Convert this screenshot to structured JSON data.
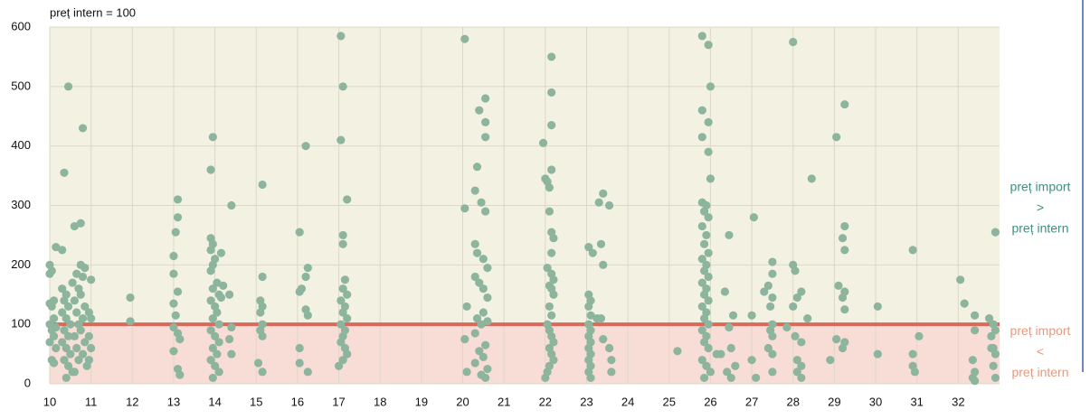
{
  "chart_data": {
    "type": "scatter",
    "reference_line": {
      "value": 100,
      "label": "preț intern = 100",
      "color": "#d9695a"
    },
    "annotations": [
      {
        "lines": [
          "preț import",
          ">",
          "preț intern"
        ],
        "color": "#3f8f80"
      },
      {
        "lines": [
          "preț import",
          "<",
          "preț intern"
        ],
        "color": "#e59a80"
      }
    ],
    "region_colors": {
      "above": "#f3f1e2",
      "below": "#f7ddd5"
    },
    "color": "#8db59e",
    "xlim": [
      10,
      33
    ],
    "ylim": [
      0,
      600
    ],
    "xticks": [
      10,
      11,
      12,
      13,
      14,
      15,
      16,
      17,
      18,
      19,
      20,
      21,
      22,
      23,
      24,
      25,
      26,
      27,
      28,
      29,
      30,
      31,
      32
    ],
    "yticks": [
      0,
      100,
      200,
      300,
      400,
      500,
      600
    ],
    "grid": true,
    "x": [
      10.0,
      10.05,
      10.0,
      10.1,
      10.0,
      10.05,
      10.1,
      10.0,
      10.15,
      10.05,
      10.1,
      10.0,
      10.15,
      10.05,
      10.1,
      10.15,
      10.3,
      10.35,
      10.45,
      10.3,
      10.4,
      10.35,
      10.45,
      10.3,
      10.4,
      10.5,
      10.35,
      10.45,
      10.3,
      10.4,
      10.5,
      10.35,
      10.45,
      10.55,
      10.4,
      10.6,
      10.65,
      10.55,
      10.7,
      10.6,
      10.65,
      10.7,
      10.6,
      10.65,
      10.7,
      10.6,
      10.75,
      10.8,
      10.75,
      10.85,
      10.8,
      10.75,
      10.85,
      10.8,
      10.75,
      10.85,
      10.8,
      10.9,
      11.0,
      10.95,
      11.0,
      10.95,
      11.0,
      10.95,
      11.95,
      11.95,
      13.1,
      13.1,
      13.05,
      13.0,
      13.0,
      13.1,
      13.0,
      13.05,
      13.0,
      13.1,
      13.0,
      13.1,
      13.15,
      13.15,
      13.95,
      13.9,
      13.9,
      13.95,
      13.9,
      14.0,
      13.95,
      13.9,
      14.05,
      13.95,
      14.1,
      13.9,
      14.0,
      14.05,
      13.95,
      14.1,
      13.9,
      14.0,
      14.1,
      13.95,
      14.05,
      13.9,
      14.0,
      14.1,
      13.95,
      14.15,
      14.2,
      14.15,
      14.4,
      14.35,
      14.4,
      14.35,
      14.4,
      15.15,
      15.15,
      15.1,
      15.15,
      15.1,
      15.15,
      15.1,
      15.15,
      15.05,
      15.15,
      16.05,
      16.25,
      16.2,
      16.1,
      16.05,
      16.2,
      16.25,
      16.05,
      16.05,
      16.25,
      16.2,
      17.05,
      17.1,
      17.05,
      17.2,
      17.1,
      17.1,
      17.15,
      17.1,
      17.2,
      17.05,
      17.15,
      17.1,
      17.2,
      17.05,
      17.15,
      17.1,
      17.05,
      17.15,
      17.2,
      17.1,
      17.0,
      20.05,
      20.4,
      20.55,
      20.55,
      20.55,
      20.35,
      20.3,
      20.45,
      20.05,
      20.55,
      20.3,
      20.35,
      20.5,
      20.6,
      20.3,
      20.4,
      20.5,
      20.6,
      20.1,
      20.5,
      20.35,
      20.6,
      20.45,
      20.3,
      20.05,
      20.55,
      20.4,
      20.5,
      20.3,
      20.6,
      20.1,
      20.45,
      20.55,
      22.15,
      22.15,
      22.15,
      21.95,
      22.15,
      22.0,
      22.05,
      22.1,
      22.1,
      22.15,
      22.2,
      22.15,
      22.05,
      22.15,
      22.2,
      22.1,
      22.15,
      22.2,
      22.1,
      22.15,
      22.05,
      22.1,
      22.15,
      22.2,
      22.1,
      22.15,
      22.2,
      22.1,
      22.05,
      22.0,
      23.05,
      23.15,
      23.35,
      23.05,
      23.1,
      23.05,
      23.1,
      23.25,
      23.05,
      23.1,
      23.05,
      23.1,
      23.05,
      23.1,
      23.05,
      23.1,
      23.05,
      23.1,
      23.3,
      23.4,
      23.55,
      23.4,
      23.35,
      23.4,
      23.55,
      23.6,
      23.6,
      25.2,
      25.8,
      25.95,
      26.0,
      25.8,
      25.95,
      25.8,
      25.95,
      26.0,
      25.8,
      25.9,
      25.85,
      25.95,
      25.8,
      25.9,
      25.85,
      25.95,
      25.8,
      25.9,
      25.85,
      25.95,
      25.8,
      25.9,
      25.85,
      25.95,
      25.8,
      25.9,
      25.85,
      25.95,
      25.8,
      25.9,
      25.85,
      25.95,
      26.15,
      25.8,
      25.9,
      26.0,
      25.85,
      26.45,
      26.35,
      26.55,
      26.45,
      26.5,
      26.25,
      26.6,
      26.4,
      26.5,
      27.05,
      27.5,
      27.5,
      27.4,
      27.3,
      27.5,
      27.45,
      27.0,
      27.5,
      27.45,
      27.5,
      27.4,
      27.5,
      27.0,
      27.5,
      27.1,
      28.0,
      28.45,
      28.0,
      28.05,
      28.2,
      28.1,
      28.0,
      28.35,
      27.85,
      28.05,
      28.2,
      28.1,
      28.2,
      28.1,
      28.2,
      29.25,
      29.05,
      29.25,
      29.2,
      29.25,
      29.1,
      29.25,
      29.2,
      29.25,
      29.05,
      29.25,
      29.2,
      28.9,
      30.05,
      30.05,
      30.9,
      31.05,
      30.9,
      30.9,
      30.95,
      32.05,
      32.15,
      32.4,
      32.4,
      32.8,
      32.35,
      32.4,
      32.35,
      32.4,
      32.9,
      32.75,
      32.85,
      32.9,
      32.8,
      32.85,
      32.9,
      32.85,
      32.9
    ],
    "values": [
      200,
      190,
      185,
      140,
      135,
      130,
      110,
      100,
      95,
      90,
      80,
      70,
      60,
      40,
      35,
      230,
      225,
      355,
      500,
      160,
      150,
      140,
      130,
      120,
      110,
      100,
      90,
      80,
      70,
      60,
      50,
      40,
      30,
      20,
      10,
      265,
      185,
      170,
      160,
      140,
      120,
      100,
      80,
      60,
      40,
      20,
      270,
      430,
      200,
      195,
      180,
      150,
      130,
      110,
      90,
      70,
      50,
      30,
      175,
      120,
      110,
      80,
      60,
      40,
      145,
      105,
      310,
      280,
      255,
      215,
      185,
      155,
      135,
      115,
      95,
      85,
      55,
      25,
      15,
      75,
      415,
      360,
      245,
      235,
      225,
      210,
      200,
      190,
      170,
      160,
      150,
      140,
      130,
      120,
      110,
      100,
      90,
      80,
      70,
      60,
      50,
      40,
      30,
      20,
      10,
      220,
      165,
      145,
      300,
      150,
      95,
      75,
      50,
      335,
      180,
      140,
      130,
      120,
      100,
      90,
      80,
      35,
      20,
      255,
      195,
      180,
      160,
      155,
      125,
      115,
      60,
      35,
      20,
      400,
      585,
      500,
      410,
      310,
      250,
      235,
      175,
      160,
      150,
      140,
      130,
      120,
      110,
      100,
      90,
      80,
      70,
      60,
      50,
      40,
      30,
      580,
      460,
      440,
      415,
      480,
      365,
      325,
      305,
      295,
      290,
      235,
      220,
      210,
      195,
      180,
      170,
      160,
      145,
      130,
      120,
      110,
      105,
      100,
      85,
      75,
      65,
      55,
      45,
      35,
      25,
      20,
      15,
      10,
      550,
      490,
      435,
      405,
      360,
      345,
      340,
      330,
      290,
      255,
      245,
      220,
      195,
      185,
      175,
      165,
      160,
      150,
      130,
      115,
      100,
      90,
      80,
      70,
      60,
      50,
      40,
      30,
      20,
      10,
      230,
      220,
      235,
      150,
      140,
      130,
      115,
      110,
      100,
      90,
      80,
      70,
      60,
      50,
      40,
      30,
      20,
      10,
      305,
      320,
      300,
      200,
      110,
      75,
      60,
      40,
      20,
      55,
      585,
      570,
      500,
      460,
      440,
      415,
      390,
      345,
      305,
      300,
      290,
      280,
      265,
      250,
      235,
      220,
      210,
      200,
      190,
      180,
      170,
      160,
      150,
      140,
      130,
      120,
      110,
      100,
      90,
      80,
      70,
      60,
      50,
      40,
      30,
      20,
      10,
      250,
      155,
      115,
      95,
      60,
      50,
      30,
      20,
      10,
      280,
      205,
      185,
      165,
      155,
      145,
      130,
      115,
      100,
      90,
      80,
      60,
      50,
      40,
      20,
      10,
      575,
      345,
      200,
      190,
      155,
      145,
      130,
      110,
      95,
      80,
      70,
      40,
      30,
      20,
      10,
      470,
      415,
      265,
      245,
      225,
      165,
      155,
      145,
      125,
      75,
      70,
      60,
      40,
      130,
      50,
      225,
      80,
      50,
      30,
      20,
      175,
      135,
      115,
      90,
      60,
      40,
      20,
      10,
      5,
      255,
      110,
      100,
      90,
      80,
      60,
      50,
      30,
      10
    ]
  }
}
